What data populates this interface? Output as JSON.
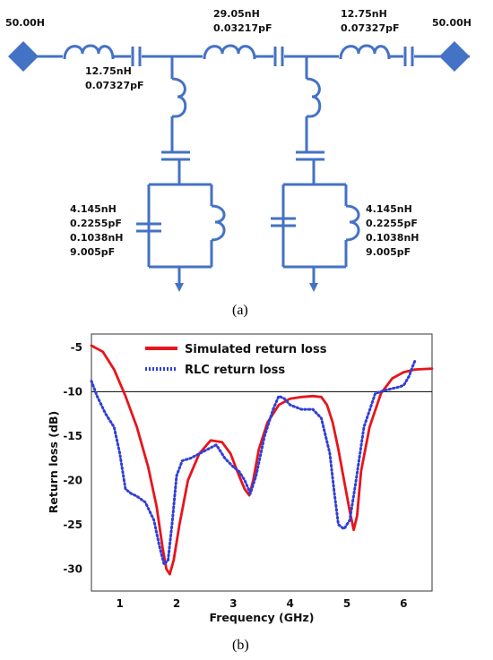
{
  "circuit": {
    "port_left_label": "50.00H",
    "port_right_label": "50.00H",
    "series1": {
      "l": "12.75nH",
      "c": "0.07327pF"
    },
    "series2": {
      "l": "29.05nH",
      "c": "0.03217pF"
    },
    "series3": {
      "l": "12.75nH",
      "c": "0.07327pF"
    },
    "shunt_left": {
      "l1": "4.145nH",
      "c1": "0.2255pF",
      "l2": "0.1038nH",
      "c2": "9.005pF"
    },
    "shunt_right": {
      "l1": "4.145nH",
      "c1": "0.2255pF",
      "l2": "0.1038nH",
      "c2": "9.005pF"
    },
    "caption": "(a)",
    "colors": {
      "component": "#4472C4"
    }
  },
  "chart_data": {
    "type": "line",
    "caption": "(b)",
    "xlabel": "Frequency (GHz)",
    "ylabel": "Return loss (dB)",
    "xlim": [
      0.5,
      6.5
    ],
    "ylim": [
      -32.5,
      -3.5
    ],
    "xticks": [
      1,
      2,
      3,
      4,
      5,
      6
    ],
    "yticks": [
      -5,
      -10,
      -15,
      -20,
      -25,
      -30
    ],
    "reference_line": -10,
    "legend_position": "top-center",
    "series": [
      {
        "name": "Simulated return loss",
        "color": "#E8141B",
        "style": "solid",
        "x": [
          0.5,
          0.7,
          0.9,
          1.1,
          1.3,
          1.5,
          1.65,
          1.75,
          1.82,
          1.88,
          1.95,
          2.05,
          2.2,
          2.4,
          2.6,
          2.8,
          2.95,
          3.1,
          3.2,
          3.28,
          3.35,
          3.45,
          3.6,
          3.8,
          4.0,
          4.2,
          4.4,
          4.55,
          4.65,
          4.75,
          4.85,
          4.95,
          5.05,
          5.12,
          5.18,
          5.25,
          5.4,
          5.6,
          5.8,
          6.0,
          6.2,
          6.5
        ],
        "y": [
          -4.8,
          -5.5,
          -7.5,
          -10.5,
          -14.0,
          -18.5,
          -23.0,
          -27.5,
          -30.0,
          -30.6,
          -29.0,
          -25.0,
          -20.0,
          -17.0,
          -15.5,
          -15.7,
          -17.0,
          -19.5,
          -21.0,
          -21.7,
          -20.0,
          -16.5,
          -13.5,
          -11.5,
          -10.8,
          -10.6,
          -10.5,
          -10.6,
          -11.5,
          -13.5,
          -16.5,
          -20.0,
          -23.5,
          -25.6,
          -24.0,
          -19.0,
          -14.0,
          -10.2,
          -8.5,
          -7.8,
          -7.5,
          -7.4
        ]
      },
      {
        "name": "RLC return loss",
        "color": "#2F3FD6",
        "style": "dotted",
        "x": [
          0.5,
          0.6,
          0.75,
          0.9,
          1.0,
          1.1,
          1.2,
          1.3,
          1.45,
          1.6,
          1.7,
          1.78,
          1.85,
          1.92,
          2.0,
          2.1,
          2.25,
          2.4,
          2.55,
          2.7,
          2.85,
          3.0,
          3.1,
          3.2,
          3.3,
          3.4,
          3.55,
          3.7,
          3.8,
          3.9,
          4.0,
          4.2,
          4.4,
          4.55,
          4.7,
          4.78,
          4.85,
          4.95,
          5.05,
          5.15,
          5.3,
          5.5,
          5.7,
          5.9,
          6.0,
          6.1,
          6.15,
          6.2
        ],
        "y": [
          -8.8,
          -10.5,
          -12.5,
          -14.0,
          -17.0,
          -21.0,
          -21.5,
          -21.8,
          -22.5,
          -24.5,
          -27.5,
          -29.5,
          -29.0,
          -25.0,
          -19.5,
          -17.8,
          -17.5,
          -17.0,
          -16.5,
          -16.0,
          -17.5,
          -18.5,
          -19.0,
          -20.0,
          -21.5,
          -19.5,
          -15.0,
          -12.0,
          -10.5,
          -10.8,
          -11.5,
          -12.0,
          -12.0,
          -13.0,
          -17.0,
          -21.5,
          -25.0,
          -25.5,
          -24.5,
          -20.5,
          -14.0,
          -10.2,
          -9.8,
          -9.5,
          -9.3,
          -8.2,
          -7.3,
          -6.5
        ]
      }
    ]
  }
}
